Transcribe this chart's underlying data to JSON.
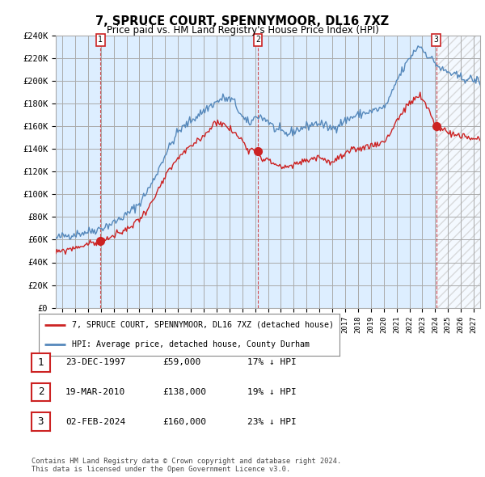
{
  "title": "7, SPRUCE COURT, SPENNYMOOR, DL16 7XZ",
  "subtitle": "Price paid vs. HM Land Registry's House Price Index (HPI)",
  "ylabel_ticks": [
    "£0",
    "£20K",
    "£40K",
    "£60K",
    "£80K",
    "£100K",
    "£120K",
    "£140K",
    "£160K",
    "£180K",
    "£200K",
    "£220K",
    "£240K"
  ],
  "ytick_values": [
    0,
    20000,
    40000,
    60000,
    80000,
    100000,
    120000,
    140000,
    160000,
    180000,
    200000,
    220000,
    240000
  ],
  "xlim_start": 1994.5,
  "xlim_end": 2027.5,
  "ylim_min": 0,
  "ylim_max": 240000,
  "hpi_color": "#5588bb",
  "price_color": "#cc2222",
  "transaction_color": "#cc2222",
  "plot_bg_color": "#ddeeff",
  "hatch_color": "#cccccc",
  "legend_line1": "7, SPRUCE COURT, SPENNYMOOR, DL16 7XZ (detached house)",
  "legend_line2": "HPI: Average price, detached house, County Durham",
  "transactions": [
    {
      "num": 1,
      "date": "23-DEC-1997",
      "price": 59000,
      "pct": "17%",
      "x_year": 1997.97
    },
    {
      "num": 2,
      "date": "19-MAR-2010",
      "price": 138000,
      "pct": "19%",
      "x_year": 2010.21
    },
    {
      "num": 3,
      "date": "02-FEB-2024",
      "price": 160000,
      "pct": "23%",
      "x_year": 2024.09
    }
  ],
  "table_rows": [
    {
      "num": 1,
      "date": "23-DEC-1997",
      "price": "£59,000",
      "pct": "17% ↓ HPI"
    },
    {
      "num": 2,
      "date": "19-MAR-2010",
      "price": "£138,000",
      "pct": "19% ↓ HPI"
    },
    {
      "num": 3,
      "date": "02-FEB-2024",
      "price": "£160,000",
      "pct": "23% ↓ HPI"
    }
  ],
  "footnote": "Contains HM Land Registry data © Crown copyright and database right 2024.\nThis data is licensed under the Open Government Licence v3.0.",
  "background_color": "#ffffff",
  "grid_color": "#aaaaaa"
}
